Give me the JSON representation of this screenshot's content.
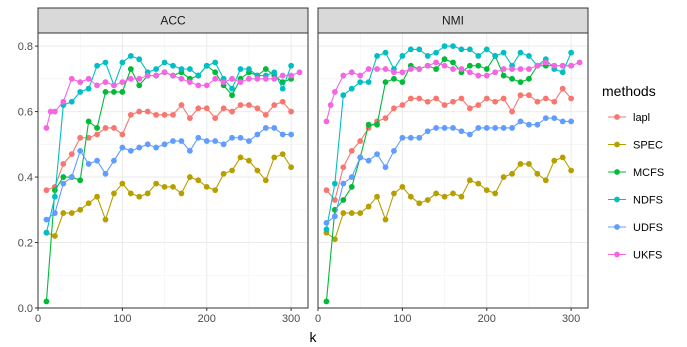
{
  "chart_data": {
    "type": "line",
    "facet_labels": [
      "ACC",
      "NMI"
    ],
    "xlabel": "k",
    "ylabel": "",
    "xlim": [
      0,
      320
    ],
    "ylim": [
      0,
      0.84
    ],
    "xticks": [
      0,
      100,
      200,
      300
    ],
    "yticks": [
      0.0,
      0.2,
      0.4,
      0.6,
      0.8
    ],
    "ytick_labels": [
      "0.0",
      "0.2",
      "0.4",
      "0.6",
      "0.8"
    ],
    "grid": true,
    "legend": {
      "title": "methods",
      "position": "right"
    },
    "panels": [
      {
        "label": "ACC",
        "series": [
          {
            "name": "lapl",
            "color": "#F8766D",
            "x": [
              10,
              20,
              30,
              40,
              50,
              60,
              70,
              80,
              90,
              100,
              110,
              120,
              130,
              140,
              150,
              160,
              170,
              180,
              190,
              200,
              210,
              220,
              230,
              240,
              250,
              260,
              270,
              280,
              290,
              300
            ],
            "y": [
              0.36,
              0.37,
              0.44,
              0.47,
              0.52,
              0.52,
              0.53,
              0.55,
              0.55,
              0.53,
              0.59,
              0.6,
              0.6,
              0.59,
              0.59,
              0.59,
              0.62,
              0.58,
              0.61,
              0.61,
              0.58,
              0.61,
              0.6,
              0.62,
              0.62,
              0.61,
              0.59,
              0.62,
              0.63,
              0.6
            ]
          },
          {
            "name": "SPEC",
            "color": "#B79F00",
            "x": [
              10,
              20,
              30,
              40,
              50,
              60,
              70,
              80,
              90,
              100,
              110,
              120,
              130,
              140,
              150,
              160,
              170,
              180,
              190,
              200,
              210,
              220,
              230,
              240,
              250,
              260,
              270,
              280,
              290,
              300
            ],
            "y": [
              0.23,
              0.22,
              0.29,
              0.29,
              0.3,
              0.32,
              0.34,
              0.27,
              0.35,
              0.38,
              0.35,
              0.34,
              0.35,
              0.38,
              0.37,
              0.37,
              0.35,
              0.4,
              0.39,
              0.37,
              0.36,
              0.41,
              0.42,
              0.46,
              0.45,
              0.42,
              0.39,
              0.46,
              0.47,
              0.43
            ]
          },
          {
            "name": "MCFS",
            "color": "#00BA38",
            "x": [
              10,
              20,
              30,
              40,
              50,
              60,
              70,
              80,
              90,
              100,
              110,
              120,
              130,
              140,
              150,
              160,
              170,
              180,
              190,
              200,
              210,
              220,
              230,
              240,
              250,
              260,
              270,
              280,
              290,
              300
            ],
            "y": [
              0.02,
              0.36,
              0.4,
              0.4,
              0.39,
              0.57,
              0.55,
              0.66,
              0.66,
              0.66,
              0.73,
              0.68,
              0.71,
              0.71,
              0.72,
              0.71,
              0.72,
              0.7,
              0.71,
              0.74,
              0.72,
              0.68,
              0.65,
              0.7,
              0.72,
              0.71,
              0.73,
              0.71,
              0.69,
              0.7
            ]
          },
          {
            "name": "NDFS",
            "color": "#00BFC4",
            "x": [
              10,
              20,
              30,
              40,
              50,
              60,
              70,
              80,
              90,
              100,
              110,
              120,
              130,
              140,
              150,
              160,
              170,
              180,
              190,
              200,
              210,
              220,
              230,
              240,
              250,
              260,
              270,
              280,
              290,
              300
            ],
            "y": [
              0.23,
              0.34,
              0.62,
              0.63,
              0.66,
              0.67,
              0.74,
              0.75,
              0.68,
              0.75,
              0.77,
              0.76,
              0.72,
              0.73,
              0.75,
              0.74,
              0.73,
              0.73,
              0.71,
              0.74,
              0.75,
              0.7,
              0.67,
              0.73,
              0.73,
              0.71,
              0.71,
              0.72,
              0.67,
              0.74
            ]
          },
          {
            "name": "UDFS",
            "color": "#619CFF",
            "x": [
              10,
              20,
              30,
              40,
              50,
              60,
              70,
              80,
              90,
              100,
              110,
              120,
              130,
              140,
              150,
              160,
              170,
              180,
              190,
              200,
              210,
              220,
              230,
              240,
              250,
              260,
              270,
              280,
              290,
              300
            ],
            "y": [
              0.27,
              0.29,
              0.38,
              0.4,
              0.48,
              0.44,
              0.45,
              0.41,
              0.45,
              0.49,
              0.48,
              0.49,
              0.5,
              0.49,
              0.5,
              0.51,
              0.51,
              0.48,
              0.52,
              0.51,
              0.51,
              0.5,
              0.52,
              0.52,
              0.51,
              0.53,
              0.55,
              0.55,
              0.53,
              0.53
            ]
          },
          {
            "name": "UKFS",
            "color": "#F564E3",
            "x": [
              10,
              15,
              20,
              30,
              40,
              50,
              60,
              70,
              80,
              90,
              100,
              110,
              120,
              130,
              140,
              150,
              160,
              170,
              180,
              190,
              200,
              210,
              220,
              230,
              240,
              250,
              260,
              270,
              280,
              290,
              300,
              310
            ],
            "y": [
              0.55,
              0.6,
              0.6,
              0.63,
              0.7,
              0.69,
              0.7,
              0.68,
              0.69,
              0.68,
              0.69,
              0.7,
              0.7,
              0.71,
              0.71,
              0.72,
              0.71,
              0.7,
              0.69,
              0.68,
              0.68,
              0.7,
              0.69,
              0.7,
              0.69,
              0.7,
              0.7,
              0.7,
              0.7,
              0.71,
              0.71,
              0.72
            ]
          }
        ]
      },
      {
        "label": "NMI",
        "series": [
          {
            "name": "lapl",
            "color": "#F8766D",
            "x": [
              10,
              20,
              30,
              40,
              50,
              60,
              70,
              80,
              90,
              100,
              110,
              120,
              130,
              140,
              150,
              160,
              170,
              180,
              190,
              200,
              210,
              220,
              230,
              240,
              250,
              260,
              270,
              280,
              290,
              300
            ],
            "y": [
              0.36,
              0.33,
              0.43,
              0.48,
              0.51,
              0.55,
              0.57,
              0.58,
              0.61,
              0.62,
              0.64,
              0.64,
              0.63,
              0.64,
              0.62,
              0.63,
              0.64,
              0.61,
              0.62,
              0.64,
              0.63,
              0.64,
              0.6,
              0.65,
              0.65,
              0.63,
              0.64,
              0.63,
              0.67,
              0.64
            ]
          },
          {
            "name": "SPEC",
            "color": "#B79F00",
            "x": [
              10,
              20,
              30,
              40,
              50,
              60,
              70,
              80,
              90,
              100,
              110,
              120,
              130,
              140,
              150,
              160,
              170,
              180,
              190,
              200,
              210,
              220,
              230,
              240,
              250,
              260,
              270,
              280,
              290,
              300
            ],
            "y": [
              0.23,
              0.21,
              0.29,
              0.29,
              0.29,
              0.31,
              0.34,
              0.27,
              0.35,
              0.37,
              0.34,
              0.32,
              0.33,
              0.35,
              0.34,
              0.35,
              0.34,
              0.39,
              0.38,
              0.36,
              0.35,
              0.4,
              0.41,
              0.44,
              0.44,
              0.41,
              0.39,
              0.45,
              0.46,
              0.42
            ]
          },
          {
            "name": "MCFS",
            "color": "#00BA38",
            "x": [
              10,
              20,
              30,
              40,
              50,
              60,
              70,
              80,
              90,
              100,
              110,
              120,
              130,
              140,
              150,
              160,
              170,
              180,
              190,
              200,
              210,
              220,
              230,
              240,
              250,
              260,
              270,
              280,
              290,
              300
            ],
            "y": [
              0.02,
              0.3,
              0.33,
              0.37,
              0.46,
              0.56,
              0.56,
              0.69,
              0.7,
              0.69,
              0.74,
              0.73,
              0.74,
              0.73,
              0.76,
              0.75,
              0.72,
              0.74,
              0.74,
              0.73,
              0.77,
              0.71,
              0.7,
              0.69,
              0.7,
              0.74,
              0.74,
              0.74,
              0.74,
              0.74
            ]
          },
          {
            "name": "NDFS",
            "color": "#00BFC4",
            "x": [
              10,
              20,
              30,
              40,
              50,
              60,
              70,
              80,
              90,
              100,
              110,
              120,
              130,
              140,
              150,
              160,
              170,
              180,
              190,
              200,
              210,
              220,
              230,
              240,
              250,
              260,
              270,
              280,
              290,
              300
            ],
            "y": [
              0.24,
              0.38,
              0.65,
              0.67,
              0.69,
              0.69,
              0.77,
              0.78,
              0.73,
              0.77,
              0.79,
              0.79,
              0.77,
              0.78,
              0.8,
              0.8,
              0.79,
              0.79,
              0.77,
              0.79,
              0.77,
              0.78,
              0.74,
              0.78,
              0.77,
              0.74,
              0.76,
              0.73,
              0.72,
              0.78
            ]
          },
          {
            "name": "UDFS",
            "color": "#619CFF",
            "x": [
              10,
              20,
              30,
              40,
              50,
              60,
              70,
              80,
              90,
              100,
              110,
              120,
              130,
              140,
              150,
              160,
              170,
              180,
              190,
              200,
              210,
              220,
              230,
              240,
              250,
              260,
              270,
              280,
              290,
              300
            ],
            "y": [
              0.26,
              0.28,
              0.38,
              0.4,
              0.46,
              0.45,
              0.47,
              0.43,
              0.48,
              0.52,
              0.52,
              0.52,
              0.54,
              0.55,
              0.55,
              0.55,
              0.54,
              0.53,
              0.55,
              0.55,
              0.55,
              0.55,
              0.55,
              0.57,
              0.56,
              0.56,
              0.58,
              0.58,
              0.57,
              0.57
            ]
          },
          {
            "name": "UKFS",
            "color": "#F564E3",
            "x": [
              10,
              15,
              20,
              30,
              40,
              50,
              60,
              70,
              80,
              90,
              100,
              110,
              120,
              130,
              140,
              150,
              160,
              170,
              180,
              190,
              200,
              210,
              220,
              230,
              240,
              250,
              260,
              270,
              280,
              290,
              300,
              310
            ],
            "y": [
              0.57,
              0.62,
              0.66,
              0.71,
              0.72,
              0.71,
              0.73,
              0.73,
              0.73,
              0.72,
              0.72,
              0.73,
              0.73,
              0.74,
              0.75,
              0.74,
              0.73,
              0.73,
              0.72,
              0.71,
              0.71,
              0.72,
              0.73,
              0.73,
              0.73,
              0.73,
              0.74,
              0.75,
              0.74,
              0.74,
              0.74,
              0.75
            ]
          }
        ]
      }
    ]
  }
}
